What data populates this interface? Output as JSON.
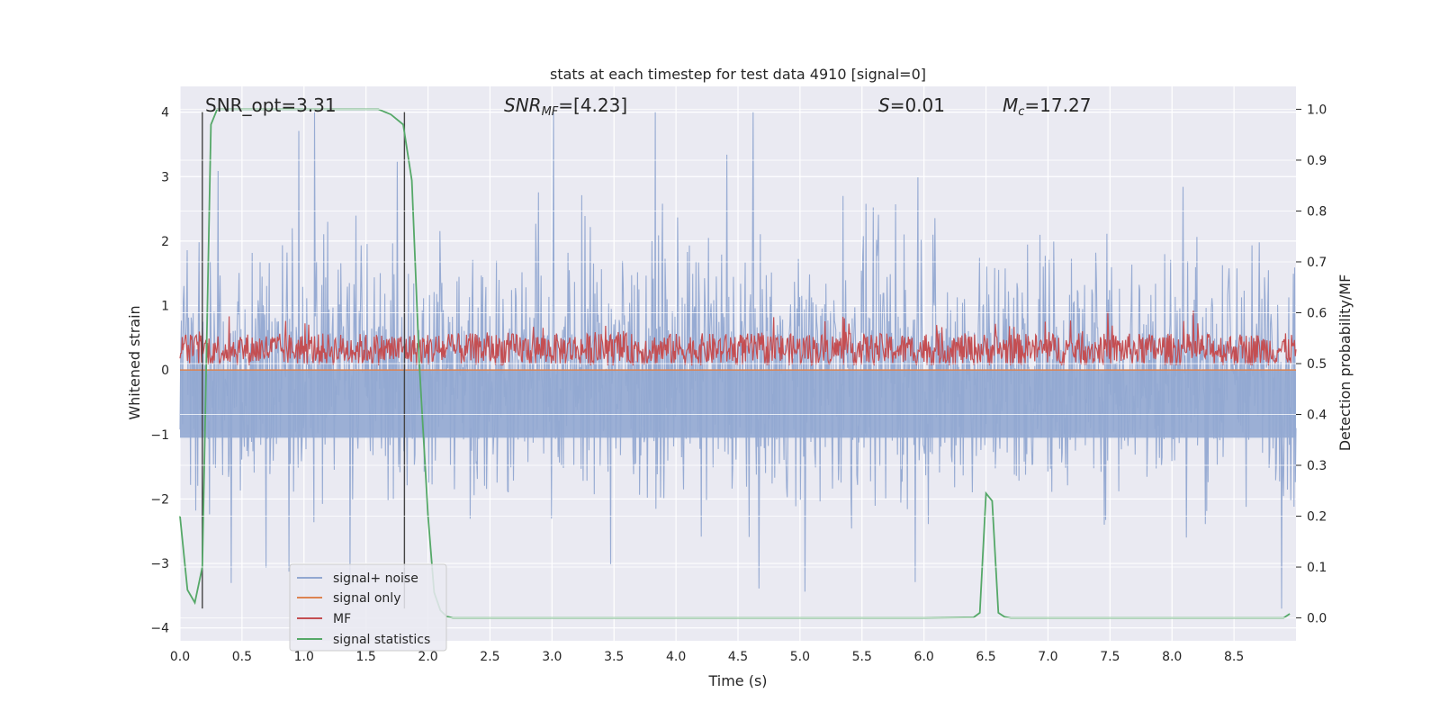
{
  "chart_data": {
    "type": "line",
    "title": "stats at each timestep for test data 4910 [signal=0]",
    "xlabel": "Time (s)",
    "ylabel": "Whitened strain",
    "y2label": "Detection probability/MF",
    "xlim": [
      0.0,
      9.0
    ],
    "ylim": [
      -4.2,
      4.4
    ],
    "y2lim": [
      -0.045,
      1.045
    ],
    "xticks": [
      "0.0",
      "0.5",
      "1.0",
      "1.5",
      "2.0",
      "2.5",
      "3.0",
      "3.5",
      "4.0",
      "4.5",
      "5.0",
      "5.5",
      "6.0",
      "6.5",
      "7.0",
      "7.5",
      "8.0",
      "8.5"
    ],
    "xtick_values": [
      0.0,
      0.5,
      1.0,
      1.5,
      2.0,
      2.5,
      3.0,
      3.5,
      4.0,
      4.5,
      5.0,
      5.5,
      6.0,
      6.5,
      7.0,
      7.5,
      8.0,
      8.5
    ],
    "yticks": [
      "4",
      "3",
      "2",
      "1",
      "0",
      "−1",
      "−2",
      "−3",
      "−4"
    ],
    "ytick_values": [
      4,
      3,
      2,
      1,
      0,
      -1,
      -2,
      -3,
      -4
    ],
    "y2ticks": [
      "1.0",
      "0.9",
      "0.8",
      "0.7",
      "0.6",
      "0.5",
      "0.4",
      "0.3",
      "0.2",
      "0.1",
      "0.0"
    ],
    "y2tick_values": [
      1.0,
      0.9,
      0.8,
      0.7,
      0.6,
      0.5,
      0.4,
      0.3,
      0.2,
      0.1,
      0.0
    ],
    "annotations": {
      "snr_opt": "SNR_opt=3.31",
      "snr_mf_label": "SNR",
      "snr_mf_sub": "MF",
      "snr_mf_value": "=[4.23]",
      "s_label": "S",
      "s_value": "=0.01",
      "mc_label": "M",
      "mc_sub": "c",
      "mc_value": "=17.27"
    },
    "vlines_x": [
      0.18,
      1.81
    ],
    "vlines_range": [
      -3.7,
      4.0
    ],
    "series": [
      {
        "name": "signal+ noise",
        "color": "#92a8d1",
        "type": "noise",
        "amplitude_range": [
          -3.7,
          4.0
        ]
      },
      {
        "name": "signal only",
        "color": "#dd8452",
        "type": "flat",
        "value": 0.0
      },
      {
        "name": "MF",
        "color": "#c44e52",
        "type": "noise",
        "range": [
          0.0,
          0.92
        ]
      },
      {
        "name": "signal statistics",
        "color": "#55a868",
        "type": "line",
        "axis": "right",
        "x": [
          0.0,
          0.06,
          0.12,
          0.18,
          0.25,
          0.3,
          0.35,
          0.5,
          1.0,
          1.5,
          1.6,
          1.7,
          1.8,
          1.87,
          1.93,
          2.0,
          2.05,
          2.1,
          2.15,
          2.2,
          2.5,
          3.0,
          4.0,
          5.0,
          6.0,
          6.4,
          6.45,
          6.5,
          6.55,
          6.6,
          6.65,
          6.7,
          7.0,
          8.0,
          8.9,
          8.95
        ],
        "values": [
          0.2,
          0.055,
          0.03,
          0.1,
          0.97,
          1.0,
          1.0,
          1.0,
          1.0,
          1.0,
          1.0,
          0.99,
          0.97,
          0.86,
          0.5,
          0.2,
          0.05,
          0.015,
          0.003,
          0.0,
          0.0,
          0.0,
          0.0,
          0.0,
          0.0,
          0.001,
          0.01,
          0.245,
          0.23,
          0.01,
          0.002,
          0.0,
          0.0,
          0.0,
          0.0,
          0.008
        ]
      }
    ],
    "legend": [
      "signal+ noise",
      "signal only",
      "MF",
      "signal statistics"
    ],
    "legend_position": "lower-left",
    "grid": true
  }
}
